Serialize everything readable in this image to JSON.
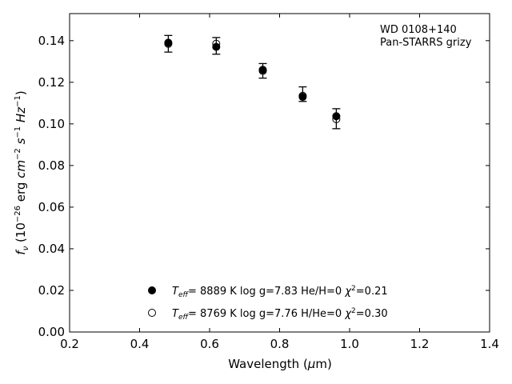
{
  "chart_data": {
    "type": "scatter",
    "xlabel": "Wavelength (μm)",
    "ylabel": "f_ν (10^-26 erg cm^-2 s^-1 Hz^-1)",
    "xlim": [
      0.2,
      1.4
    ],
    "ylim": [
      0.0,
      0.153
    ],
    "xticks": [
      "0.2",
      "0.4",
      "0.6",
      "0.8",
      "1.0",
      "1.2",
      "1.4"
    ],
    "yticks": [
      "0.00",
      "0.02",
      "0.04",
      "0.06",
      "0.08",
      "0.10",
      "0.12",
      "0.14"
    ],
    "grid": false,
    "annotation": [
      "WD 0108+140",
      "Pan-STARRS grizy"
    ],
    "observed": {
      "x": [
        0.482,
        0.619,
        0.752,
        0.866,
        0.962
      ],
      "y": [
        0.1385,
        0.1375,
        0.1255,
        0.1143,
        0.1025
      ],
      "yerr": [
        0.004,
        0.004,
        0.0035,
        0.0035,
        0.0048
      ]
    },
    "series": [
      {
        "marker": "filled-circle",
        "x": [
          0.482,
          0.619,
          0.752,
          0.866,
          0.962
        ],
        "y": [
          0.139,
          0.137,
          0.126,
          0.113,
          0.1037
        ],
        "legend": {
          "teff": "8889 K",
          "logg": "log g=7.83",
          "comp": "He/H=0",
          "chi2": "=0.21"
        }
      },
      {
        "marker": "open-circle",
        "x": [
          0.482,
          0.619,
          0.752,
          0.866,
          0.962
        ],
        "y": [
          0.1385,
          0.1385,
          0.1255,
          0.1135,
          0.1023
        ],
        "legend": {
          "teff": "8769 K",
          "logg": "log g=7.76",
          "comp": "H/He=0",
          "chi2": "=0.30"
        }
      }
    ],
    "legend_position": "lower-center"
  }
}
